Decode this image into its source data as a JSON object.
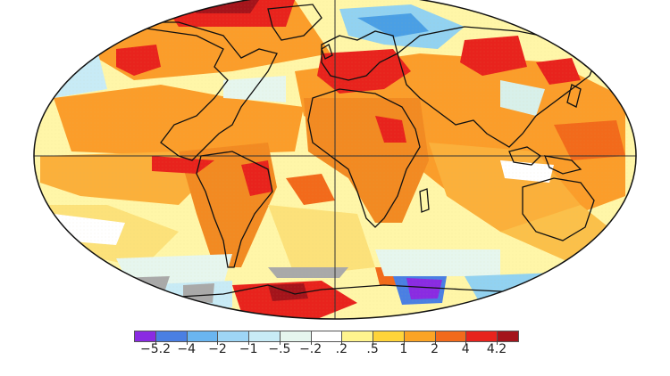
{
  "map": {
    "colors": {
      "ocean_base": "#fff6a8",
      "warm_orange": "#fb9d2a",
      "deep_orange": "#f27a1d",
      "red": "#e8231d",
      "dark_red": "#a4141b",
      "white": "#ffffff",
      "pale_blue": "#d8f0ea",
      "light_blue": "#92d2f1",
      "blue": "#4a9fe5",
      "purple": "#8a2be2",
      "gray": "#a9a9a9",
      "coast": "#111111"
    }
  },
  "legend": {
    "colors": [
      "#8a2be2",
      "#4a7fe3",
      "#6ab5f0",
      "#9ed5f5",
      "#c8ebf6",
      "#e6f6ee",
      "#ffffff",
      "#fff48e",
      "#ffd43a",
      "#fba425",
      "#f26a1b",
      "#e8231d",
      "#a4141b"
    ],
    "labels": [
      "−5.2",
      "−4",
      "−2",
      "−1",
      "−.5",
      "−.2",
      ".2",
      ".5",
      "1",
      "2",
      "4",
      "4.2"
    ]
  }
}
